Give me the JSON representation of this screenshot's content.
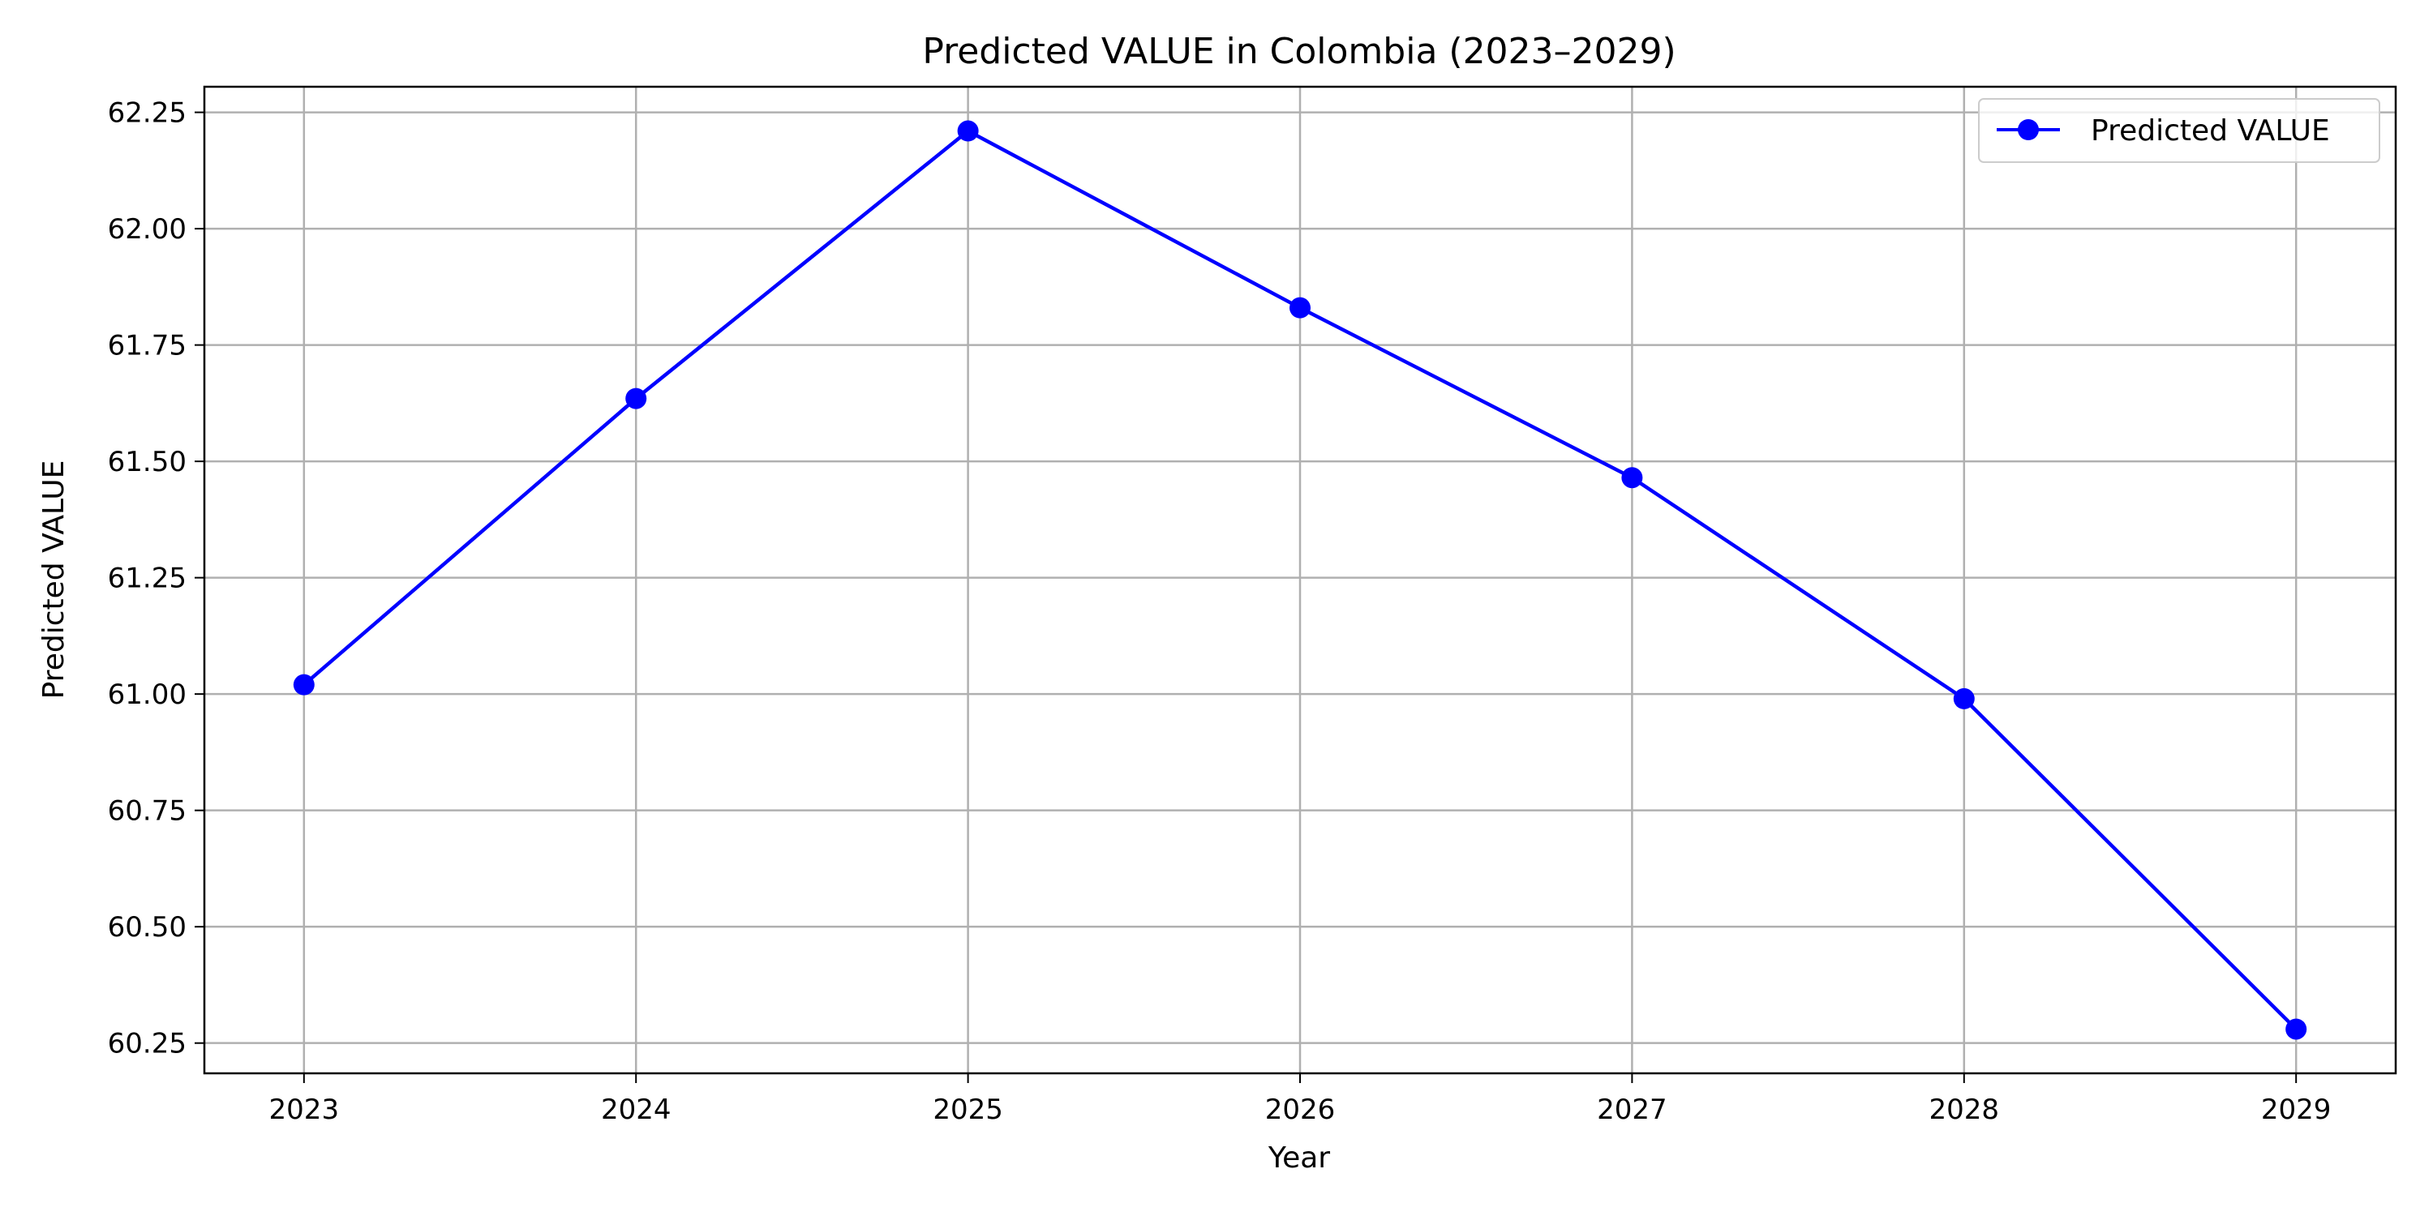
{
  "chart_data": {
    "type": "line",
    "title": "Predicted VALUE in Colombia (2023–2029)",
    "xlabel": "Year",
    "ylabel": "Predicted VALUE",
    "x": [
      2023,
      2024,
      2025,
      2026,
      2027,
      2028,
      2029
    ],
    "x_tick_labels": [
      "2023",
      "2024",
      "2025",
      "2026",
      "2027",
      "2028",
      "2029"
    ],
    "y_ticks": [
      60.25,
      60.5,
      60.75,
      61.0,
      61.25,
      61.5,
      61.75,
      62.0,
      62.25
    ],
    "y_tick_labels": [
      "60.25",
      "60.50",
      "60.75",
      "61.00",
      "61.25",
      "61.50",
      "61.75",
      "62.00",
      "62.25"
    ],
    "xlim": [
      2022.7,
      2029.3
    ],
    "ylim": [
      60.185,
      62.305
    ],
    "grid": true,
    "legend_position": "top-right",
    "series": [
      {
        "name": "Predicted VALUE",
        "color": "#0000ff",
        "marker": "circle",
        "values": [
          61.02,
          61.635,
          62.21,
          61.83,
          61.465,
          60.99,
          60.28
        ]
      }
    ]
  }
}
